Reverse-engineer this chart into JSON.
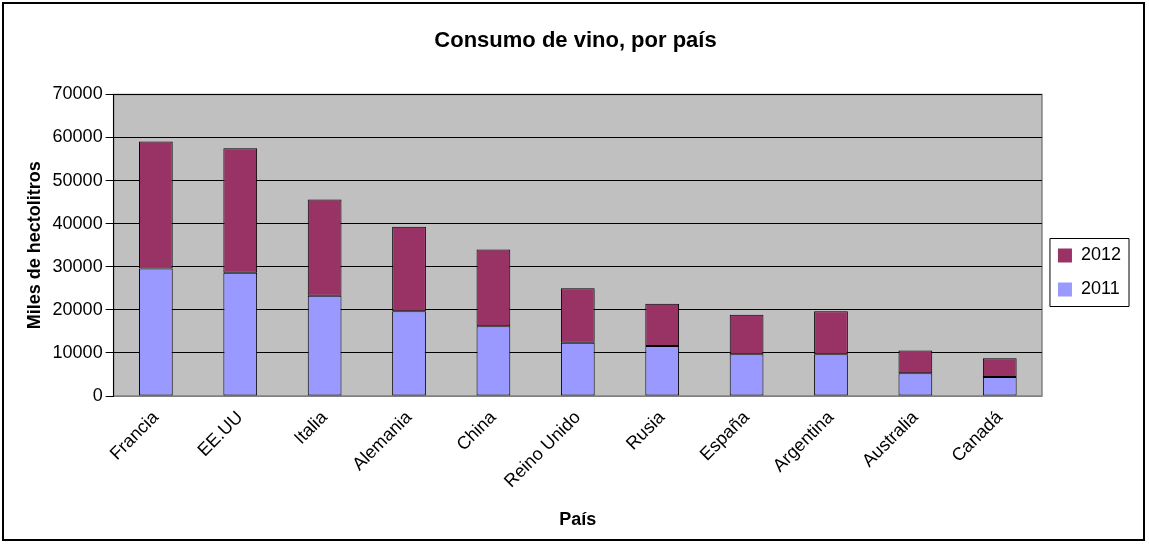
{
  "chart_data": {
    "type": "bar",
    "title": "Consumo de vino, por país",
    "xlabel": "País",
    "ylabel": "Miles de hectolitros",
    "categories": [
      "Francia",
      "EE.UU",
      "Italia",
      "Alemania",
      "China",
      "Reino Unido",
      "Rusia",
      "España",
      "Argentina",
      "Australia",
      "Canadá"
    ],
    "series": [
      {
        "name": "2011",
        "color": "#9999ff",
        "values": [
          29600,
          28600,
          23300,
          19700,
          16200,
          12400,
          11600,
          9700,
          9700,
          5300,
          4400
        ]
      },
      {
        "name": "2012",
        "color": "#993366",
        "values": [
          29500,
          28900,
          22300,
          19600,
          17800,
          12600,
          9800,
          9200,
          10000,
          5300,
          4400
        ]
      }
    ],
    "stacked": true,
    "ylim": [
      0,
      70000
    ],
    "yticks": [
      0,
      10000,
      20000,
      30000,
      40000,
      50000,
      60000,
      70000
    ],
    "grid": "y",
    "legend": "right"
  }
}
